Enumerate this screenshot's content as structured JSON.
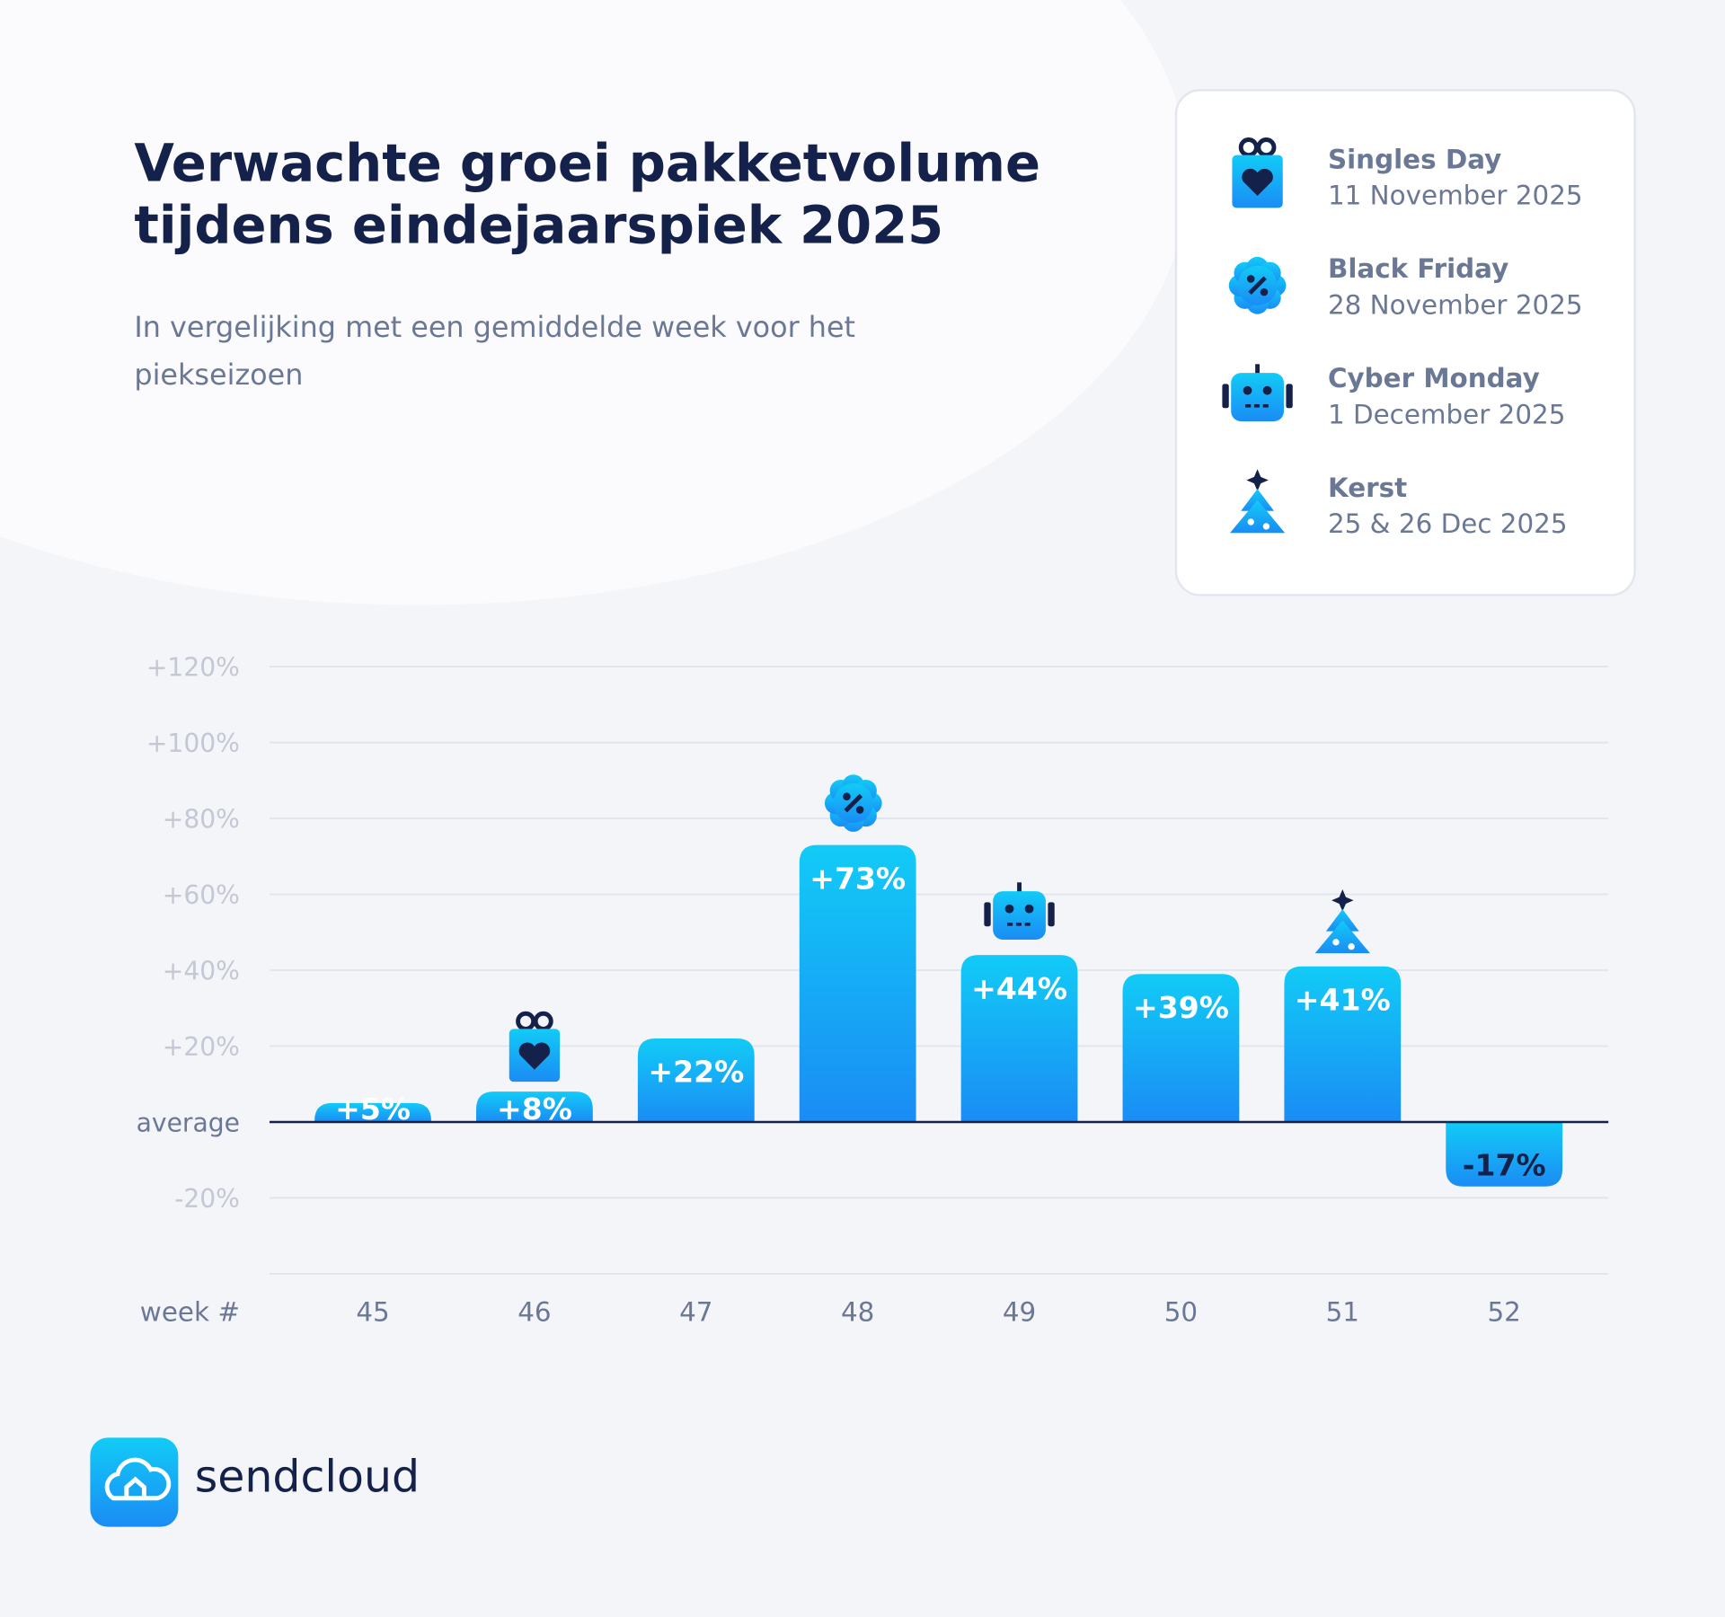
{
  "title": "Verwachte groei pakketvolume tijdens eindejaarspiek 2025",
  "title_lines": [
    "Verwachte groei pakketvolume",
    "tijdens eindejaarspiek 2025"
  ],
  "subtitle_lines": [
    "In vergelijking met een gemiddelde week voor het",
    "piekseizoen"
  ],
  "events": [
    {
      "name": "Singles Day",
      "date": "11 November 2025"
    },
    {
      "name": "Black Friday",
      "date": "28 November 2025"
    },
    {
      "name": "Cyber Monday",
      "date": "1 December 2025"
    },
    {
      "name": "Kerst",
      "date": "25 & 26 Dec 2025"
    }
  ],
  "logo": "sendcloud",
  "chart_data": {
    "type": "bar",
    "x_label": "week #",
    "categories": [
      "45",
      "46",
      "47",
      "48",
      "49",
      "50",
      "51",
      "52"
    ],
    "values": [
      5,
      8,
      22,
      73,
      44,
      39,
      41,
      -17
    ],
    "value_labels": [
      "+5%",
      "+8%",
      "+22%",
      "+73%",
      "+44%",
      "+39%",
      "+41%",
      "-17%"
    ],
    "color": "#1a9af5",
    "ylim": [
      -40,
      120
    ],
    "yticks": [
      {
        "value": -20,
        "label": "-20%"
      },
      {
        "value": 0,
        "label": "average"
      },
      {
        "value": 20,
        "label": "+20%"
      },
      {
        "value": 40,
        "label": "+40%"
      },
      {
        "value": 60,
        "label": "+60%"
      },
      {
        "value": 80,
        "label": "+80%"
      },
      {
        "value": 100,
        "label": "+100%"
      },
      {
        "value": 120,
        "label": "+120%"
      }
    ],
    "grid": true
  }
}
